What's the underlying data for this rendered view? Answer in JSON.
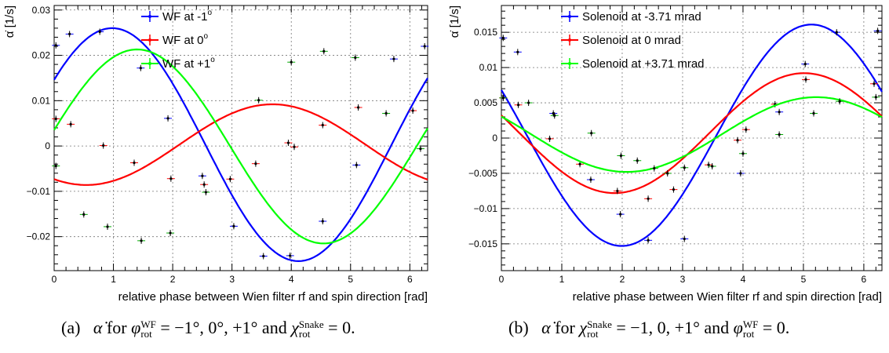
{
  "chart_data": [
    {
      "type": "line",
      "panel_label": "(a)",
      "xlabel": "relative phase between Wien filter rf and spin direction [rad]",
      "ylabel": "α̇ [1/s]",
      "xlim": [
        0,
        6.3
      ],
      "ylim": [
        -0.0275,
        0.031
      ],
      "xticks": [
        0,
        1,
        2,
        3,
        4,
        5,
        6
      ],
      "yticks": [
        -0.02,
        -0.01,
        0,
        0.01,
        0.02,
        0.03
      ],
      "ytick_labels": [
        "−0.02",
        "−0.01",
        "0",
        "0.01",
        "0.02",
        "0.03"
      ],
      "grid": true,
      "legend_position": "top-center",
      "series": [
        {
          "name": "WF at -1",
          "legend_sup": "o",
          "color": "#0000ff",
          "fit": {
            "offset": 0.0003,
            "amplitude": 0.0257,
            "phase": -0.98
          },
          "points": [
            [
              0.03,
              0.0222
            ],
            [
              0.26,
              0.0247
            ],
            [
              0.77,
              0.0252
            ],
            [
              1.46,
              0.0172
            ],
            [
              1.92,
              0.0061
            ],
            [
              2.5,
              -0.0066
            ],
            [
              3.03,
              -0.0177
            ],
            [
              3.53,
              -0.0243
            ],
            [
              3.98,
              -0.0242
            ],
            [
              4.53,
              -0.0166
            ],
            [
              5.1,
              -0.0042
            ],
            [
              5.73,
              0.0192
            ],
            [
              6.25,
              0.022
            ]
          ]
        },
        {
          "name": "WF at 0",
          "legend_sup": "o",
          "color": "#ff0000",
          "fit": {
            "offset": 0.0003,
            "amplitude": 0.0089,
            "phase": 2.6
          },
          "points": [
            [
              0.03,
              0.006
            ],
            [
              0.28,
              0.0048
            ],
            [
              0.83,
              0.0001
            ],
            [
              1.35,
              -0.0037
            ],
            [
              1.97,
              -0.0072
            ],
            [
              2.53,
              -0.0085
            ],
            [
              2.97,
              -0.0073
            ],
            [
              3.4,
              -0.0039
            ],
            [
              3.95,
              0.0007
            ],
            [
              4.05,
              -0.0002
            ],
            [
              4.53,
              0.0046
            ],
            [
              5.13,
              0.0085
            ],
            [
              6.05,
              0.0078
            ]
          ]
        },
        {
          "name": "WF at +1",
          "legend_sup": "o",
          "color": "#00ff00",
          "fit": {
            "offset": -0.0001,
            "amplitude": 0.0214,
            "phase": -1.4
          },
          "points": [
            [
              0.03,
              -0.0044
            ],
            [
              0.5,
              -0.0151
            ],
            [
              0.9,
              -0.0178
            ],
            [
              1.47,
              -0.0209
            ],
            [
              1.96,
              -0.0192
            ],
            [
              2.56,
              -0.0102
            ],
            [
              3.45,
              0.0101
            ],
            [
              4.0,
              0.0185
            ],
            [
              4.55,
              0.0209
            ],
            [
              5.08,
              0.0195
            ],
            [
              5.6,
              0.0072
            ],
            [
              6.18,
              -0.0006
            ]
          ]
        }
      ]
    },
    {
      "type": "line",
      "panel_label": "(b)",
      "xlabel": "relative phase between Wien filter rf and spin direction [rad]",
      "ylabel": "α̇ [1/s]",
      "xlim": [
        0,
        6.3
      ],
      "ylim": [
        -0.0188,
        0.0188
      ],
      "xticks": [
        0,
        1,
        2,
        3,
        4,
        5,
        6
      ],
      "yticks": [
        -0.015,
        -0.01,
        -0.005,
        0,
        0.005,
        0.01,
        0.015
      ],
      "ytick_labels": [
        "−0.015",
        "−0.01",
        "−0.005",
        "0",
        "0.005",
        "0.01",
        "0.015"
      ],
      "grid": true,
      "legend_position": "top-left",
      "series": [
        {
          "name": "Solenoid at -3.71 mrad",
          "color": "#0000ff",
          "fit": {
            "offset": 0.0004,
            "amplitude": 0.0157,
            "phase": 1.15
          },
          "points": [
            [
              0.03,
              0.0142
            ],
            [
              0.27,
              0.0122
            ],
            [
              0.86,
              0.0035
            ],
            [
              1.48,
              -0.0059
            ],
            [
              1.97,
              -0.0108
            ],
            [
              2.43,
              -0.0145
            ],
            [
              3.03,
              -0.0143
            ],
            [
              3.96,
              -0.005
            ],
            [
              4.6,
              0.0037
            ],
            [
              5.03,
              0.0105
            ],
            [
              5.55,
              0.015
            ],
            [
              6.23,
              0.0152
            ]
          ]
        },
        {
          "name": "Solenoid at 0 mrad",
          "color": "#ff0000",
          "fit": {
            "offset": 0.0007,
            "amplitude": 0.0085,
            "phase": 1.27
          },
          "points": [
            [
              0.03,
              0.0057
            ],
            [
              0.28,
              0.0047
            ],
            [
              0.8,
              -0.0001
            ],
            [
              1.3,
              -0.0037
            ],
            [
              1.92,
              -0.0075
            ],
            [
              2.43,
              -0.0086
            ],
            [
              2.85,
              -0.0073
            ],
            [
              3.43,
              -0.0038
            ],
            [
              3.91,
              -0.0003
            ],
            [
              4.05,
              0.0012
            ],
            [
              4.53,
              0.0048
            ],
            [
              5.04,
              0.0083
            ],
            [
              6.17,
              0.0077
            ]
          ]
        },
        {
          "name": "Solenoid at +3.71 mrad",
          "color": "#00ff00",
          "fit": {
            "offset": 0.0005,
            "amplitude": 0.0053,
            "phase": 1.07
          },
          "points": [
            [
              0.03,
              0.0057
            ],
            [
              0.45,
              0.005
            ],
            [
              0.88,
              0.0032
            ],
            [
              1.49,
              0.0007
            ],
            [
              1.98,
              -0.0025
            ],
            [
              2.25,
              -0.0032
            ],
            [
              2.53,
              -0.0043
            ],
            [
              2.75,
              -0.005
            ],
            [
              3.03,
              -0.0042
            ],
            [
              3.49,
              -0.004
            ],
            [
              4.0,
              -0.0022
            ],
            [
              4.6,
              0.0005
            ],
            [
              5.17,
              0.0035
            ],
            [
              5.6,
              0.0052
            ],
            [
              6.2,
              0.0058
            ]
          ]
        }
      ]
    }
  ],
  "captions": [
    {
      "label": "(a)",
      "alpha": "α̇",
      "for": "for",
      "phi": "φ",
      "phi_sub": "rot",
      "phi_sup": "WF",
      "values": "= −1°, 0°, +1° and",
      "chi": "χ",
      "chi_sub": "rot",
      "chi_sup": "Snake",
      "tail": "= 0."
    },
    {
      "label": "(b)",
      "alpha": "α̇",
      "for": "for",
      "chi": "χ",
      "chi_sub": "rot",
      "chi_sup": "Snake",
      "values": "= −1, 0, +1° and",
      "phi": "φ",
      "phi_sub": "rot",
      "phi_sup": "WF",
      "tail": "= 0."
    }
  ]
}
